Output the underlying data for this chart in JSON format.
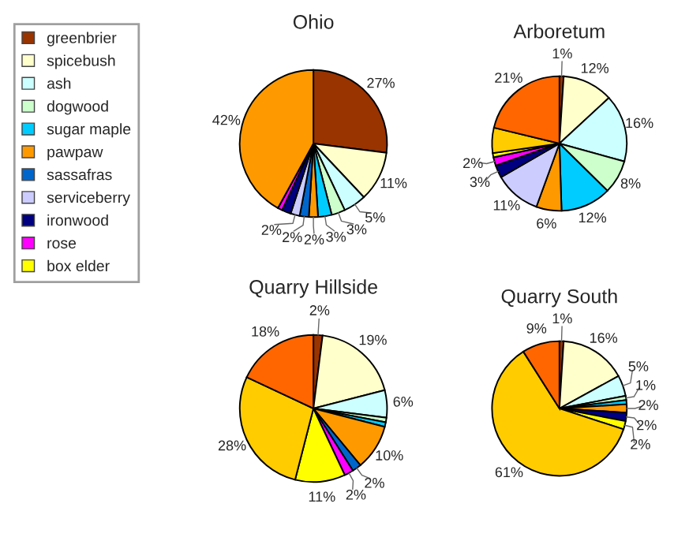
{
  "chart_data": [
    {
      "type": "pie",
      "title": "Ohio",
      "legend": "left",
      "categories": [
        "greenbrier",
        "spicebush",
        "ash",
        "dogwood",
        "sugar maple",
        "pawpaw",
        "sassafras",
        "serviceberry",
        "ironwood",
        "rose",
        "box elder",
        null,
        null
      ],
      "values": [
        27,
        11,
        5,
        3,
        3,
        2,
        2,
        2,
        2,
        1,
        null,
        null,
        42
      ],
      "value_labels": [
        "27%",
        "11%",
        "5%",
        "3%",
        "3%",
        "2%",
        "2%",
        "2%",
        null,
        null,
        null,
        null,
        "42%"
      ],
      "colors": [
        "#993300",
        "#ffffcc",
        "#ccffff",
        "#ccffcc",
        "#00ccff",
        "#ff9900",
        "#0066cc",
        "#ccccff",
        "#000080",
        "#ff00ff",
        "#ffff00",
        "#ffcc00",
        "#ff9900"
      ]
    },
    {
      "type": "pie",
      "title": "Arboretum",
      "categories": [
        null,
        null,
        null,
        null,
        null,
        null,
        null,
        null,
        null,
        null,
        null,
        null,
        null
      ],
      "values": [
        1,
        12,
        16,
        8,
        12,
        6,
        null,
        11,
        3,
        2,
        1,
        6,
        21
      ],
      "value_labels": [
        "1%",
        "12%",
        "16%",
        "8%",
        "12%",
        "6%",
        null,
        "11%",
        "3%",
        "2%",
        null,
        null,
        "21%"
      ],
      "colors": [
        "#993300",
        "#ffffcc",
        "#ccffff",
        "#ccffcc",
        "#00ccff",
        "#ff9900",
        "#0066cc",
        "#ccccff",
        "#000080",
        "#ff00ff",
        "#ffff00",
        "#ffcc00",
        "#ff6600"
      ]
    },
    {
      "type": "pie",
      "title": "Quarry Hillside",
      "categories": [
        null,
        null,
        null,
        null,
        null,
        null,
        null,
        null,
        null,
        null,
        null,
        null,
        null
      ],
      "values": [
        2,
        19,
        6,
        1,
        1,
        10,
        2,
        null,
        null,
        2,
        11,
        28,
        18
      ],
      "value_labels": [
        "2%",
        "19%",
        "6%",
        null,
        null,
        "10%",
        "2%",
        null,
        null,
        "2%",
        "11%",
        "28%",
        "18%"
      ],
      "colors": [
        "#993300",
        "#ffffcc",
        "#ccffff",
        "#ccffcc",
        "#00ccff",
        "#ff9900",
        "#0066cc",
        "#ccccff",
        "#000080",
        "#ff00ff",
        "#ffff00",
        "#ffcc00",
        "#ff6600"
      ]
    },
    {
      "type": "pie",
      "title": "Quarry South",
      "categories": [
        null,
        null,
        null,
        null,
        null,
        null,
        null,
        null,
        null,
        null,
        null,
        null,
        null
      ],
      "values": [
        1,
        16,
        5,
        1,
        1,
        2,
        null,
        null,
        2,
        null,
        2,
        61,
        9
      ],
      "value_labels": [
        "1%",
        "16%",
        "5%",
        "1%",
        null,
        "2%",
        null,
        null,
        "2%",
        null,
        "2%",
        "61%",
        "9%"
      ],
      "colors": [
        "#993300",
        "#ffffcc",
        "#ccffff",
        "#ccffcc",
        "#00ccff",
        "#ff9900",
        "#0066cc",
        "#ccccff",
        "#000080",
        "#ff00ff",
        "#ffff00",
        "#ffcc00",
        "#ff6600"
      ]
    }
  ]
}
